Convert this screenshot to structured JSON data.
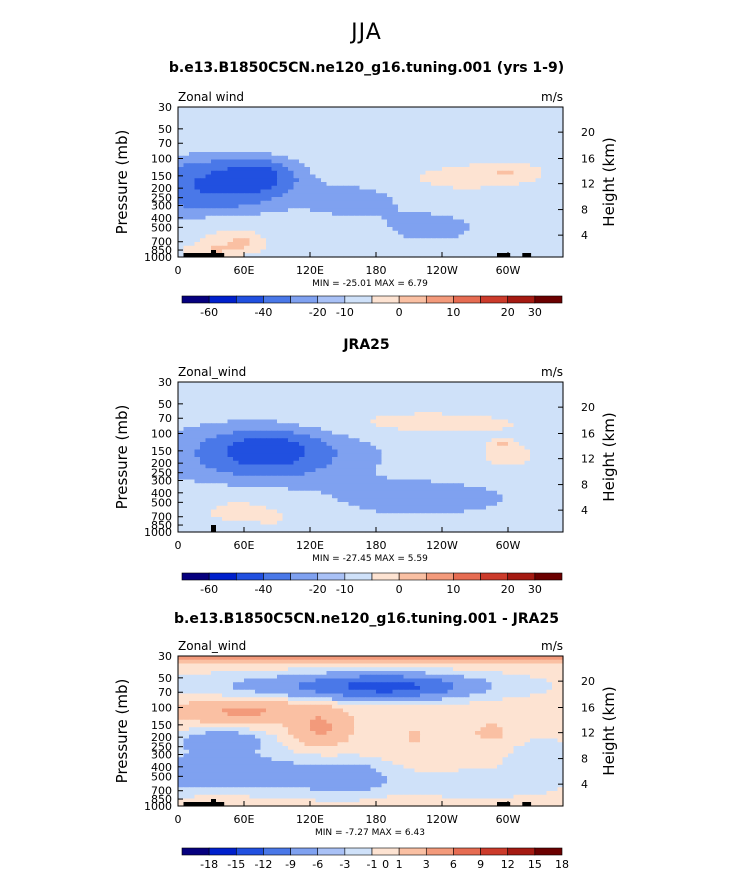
{
  "suptitle": "JJA",
  "colors": {
    "diverging": [
      "#06007e",
      "#0020cc",
      "#2150e0",
      "#4a78e8",
      "#7fa1f0",
      "#a9c1f6",
      "#cfe1f9",
      "#fde3d2",
      "#fac0a3",
      "#f39a7b",
      "#e66c52",
      "#cc3b2b",
      "#a51a12",
      "#6b0000"
    ],
    "fill_near_zero_neg": "#cfe1f9",
    "fill_near_zero_pos": "#fde3d2",
    "topography": "#000000"
  },
  "chart_data": [
    {
      "type": "heatmap",
      "title": "b.e13.B1850C5CN.ne120_g16.tuning.001 (yrs 1-9)",
      "left_label": "Zonal wind",
      "right_label": "m/s",
      "ylabel": "Pressure (mb)",
      "y2label": "Height (km)",
      "x_ticks": [
        "0",
        "60E",
        "120E",
        "180",
        "120W",
        "60W"
      ],
      "p_ticks": [
        "30",
        "50",
        "70",
        "100",
        "150",
        "200",
        "250",
        "300",
        "400",
        "500",
        "700",
        "850",
        "1000"
      ],
      "h_ticks": [
        "20",
        "16",
        "12",
        "8",
        "4"
      ],
      "stats": "MIN =  -25.01   MAX =    6.79",
      "colorbar_labels": [
        "-60",
        "-40",
        "-20",
        "-10",
        "0",
        "10",
        "20",
        "30"
      ],
      "colorbar_label_slots": [
        1,
        3,
        5,
        6,
        8,
        10,
        12,
        13
      ],
      "blobs": [
        {
          "x": 30,
          "p": 190,
          "rx": 55,
          "rp": 0.55,
          "v": -18
        },
        {
          "x": 70,
          "p": 155,
          "rx": 30,
          "rp": 0.35,
          "v": -22
        },
        {
          "x": 160,
          "p": 260,
          "rx": 50,
          "rp": 0.45,
          "v": -4
        },
        {
          "x": 230,
          "p": 500,
          "rx": 40,
          "rp": 0.35,
          "v": -4
        },
        {
          "x": 250,
          "p": 160,
          "rx": 70,
          "rp": 0.42,
          "v": 4
        },
        {
          "x": 300,
          "p": 140,
          "rx": 30,
          "rp": 0.22,
          "v": 6
        },
        {
          "x": 45,
          "p": 650,
          "rx": 35,
          "rp": 0.45,
          "v": 4
        },
        {
          "x": 60,
          "p": 720,
          "rx": 18,
          "rp": 0.2,
          "v": 6
        },
        {
          "x": 30,
          "p": 850,
          "rx": 25,
          "rp": 0.15,
          "v": 6
        },
        {
          "x": 180,
          "p": 70,
          "rx": 300,
          "rp": 0.35,
          "v": 1
        },
        {
          "x": 180,
          "p": 32,
          "rx": 300,
          "rp": 0.2,
          "v": -2
        }
      ],
      "base": -3,
      "topo": [
        [
          5,
          28
        ],
        [
          32,
          10
        ],
        [
          290,
          12
        ],
        [
          313,
          8
        ]
      ]
    },
    {
      "type": "heatmap",
      "title": "JRA25",
      "left_label": "Zonal_wind",
      "right_label": "m/s",
      "ylabel": "Pressure (mb)",
      "y2label": "Height (km)",
      "x_ticks": [
        "0",
        "60E",
        "120E",
        "180",
        "120W",
        "60W"
      ],
      "p_ticks": [
        "30",
        "50",
        "70",
        "100",
        "150",
        "200",
        "250",
        "300",
        "400",
        "500",
        "700",
        "850",
        "1000"
      ],
      "h_ticks": [
        "20",
        "16",
        "12",
        "8",
        "4"
      ],
      "stats": "MIN =  -27.45   MAX =    5.59",
      "colorbar_labels": [
        "-60",
        "-40",
        "-20",
        "-10",
        "0",
        "10",
        "20",
        "30"
      ],
      "colorbar_label_slots": [
        1,
        3,
        5,
        6,
        8,
        10,
        12,
        13
      ],
      "blobs": [
        {
          "x": 80,
          "p": 160,
          "rx": 75,
          "rp": 0.65,
          "v": -14
        },
        {
          "x": 80,
          "p": 150,
          "rx": 30,
          "rp": 0.3,
          "v": -24
        },
        {
          "x": 220,
          "p": 80,
          "rx": 140,
          "rp": 0.35,
          "v": 4
        },
        {
          "x": 300,
          "p": 170,
          "rx": 40,
          "rp": 0.4,
          "v": 4
        },
        {
          "x": 295,
          "p": 130,
          "rx": 10,
          "rp": 0.1,
          "v": 6
        },
        {
          "x": 60,
          "p": 600,
          "rx": 60,
          "rp": 0.55,
          "v": 4
        },
        {
          "x": 85,
          "p": 700,
          "rx": 8,
          "rp": 0.1,
          "v": 6
        },
        {
          "x": 180,
          "p": 50,
          "rx": 300,
          "rp": 0.3,
          "v": 1
        },
        {
          "x": 180,
          "p": 31,
          "rx": 300,
          "rp": 0.15,
          "v": -2
        },
        {
          "x": 220,
          "p": 450,
          "rx": 90,
          "rp": 0.45,
          "v": -4
        }
      ],
      "base": -3,
      "topo": []
    },
    {
      "type": "heatmap",
      "title": "b.e13.B1850C5CN.ne120_g16.tuning.001 - JRA25",
      "left_label": "Zonal_wind",
      "right_label": "m/s",
      "ylabel": "Pressure (mb)",
      "y2label": "Height (km)",
      "x_ticks": [
        "0",
        "60E",
        "120E",
        "180",
        "120W",
        "60W"
      ],
      "p_ticks": [
        "30",
        "50",
        "70",
        "100",
        "150",
        "200",
        "250",
        "300",
        "400",
        "500",
        "700",
        "850",
        "1000"
      ],
      "h_ticks": [
        "20",
        "16",
        "12",
        "8",
        "4"
      ],
      "stats": "MIN =   -7.27   MAX =    6.43",
      "colorbar_labels": [
        "-18",
        "-15",
        "-12",
        "-9",
        "-6",
        "-3",
        "-1",
        "0",
        "1",
        "3",
        "6",
        "9",
        "12",
        "15",
        "18"
      ],
      "colorbar_label_slots": [
        1,
        2,
        3,
        4,
        5,
        6,
        7,
        7.5,
        8,
        9,
        10,
        11,
        12,
        13,
        14
      ],
      "blobs": [
        {
          "x": 180,
          "p": 31,
          "rx": 300,
          "rp": 0.14,
          "v": 4
        },
        {
          "x": 190,
          "p": 62,
          "rx": 60,
          "rp": 0.25,
          "v": -5
        },
        {
          "x": 160,
          "p": 60,
          "rx": 120,
          "rp": 0.28,
          "v": -3
        },
        {
          "x": 60,
          "p": 110,
          "rx": 60,
          "rp": 0.25,
          "v": 3
        },
        {
          "x": 130,
          "p": 160,
          "rx": 25,
          "rp": 0.4,
          "v": 3
        },
        {
          "x": 40,
          "p": 220,
          "rx": 35,
          "rp": 0.25,
          "v": -3
        },
        {
          "x": 40,
          "p": 450,
          "rx": 70,
          "rp": 0.45,
          "v": -3
        },
        {
          "x": 150,
          "p": 520,
          "rx": 40,
          "rp": 0.35,
          "v": -3
        },
        {
          "x": 215,
          "p": 200,
          "rx": 12,
          "rp": 0.2,
          "v": 1
        },
        {
          "x": 285,
          "p": 180,
          "rx": 22,
          "rp": 0.3,
          "v": 1
        },
        {
          "x": 270,
          "p": 600,
          "rx": 60,
          "rp": 0.3,
          "v": -1
        },
        {
          "x": 40,
          "p": 850,
          "rx": 20,
          "rp": 0.15,
          "v": 1
        },
        {
          "x": 330,
          "p": 350,
          "rx": 30,
          "rp": 0.5,
          "v": -1
        }
      ],
      "base": 0.3,
      "topo": [
        [
          5,
          28
        ],
        [
          32,
          10
        ],
        [
          290,
          12
        ],
        [
          313,
          8
        ]
      ]
    }
  ]
}
